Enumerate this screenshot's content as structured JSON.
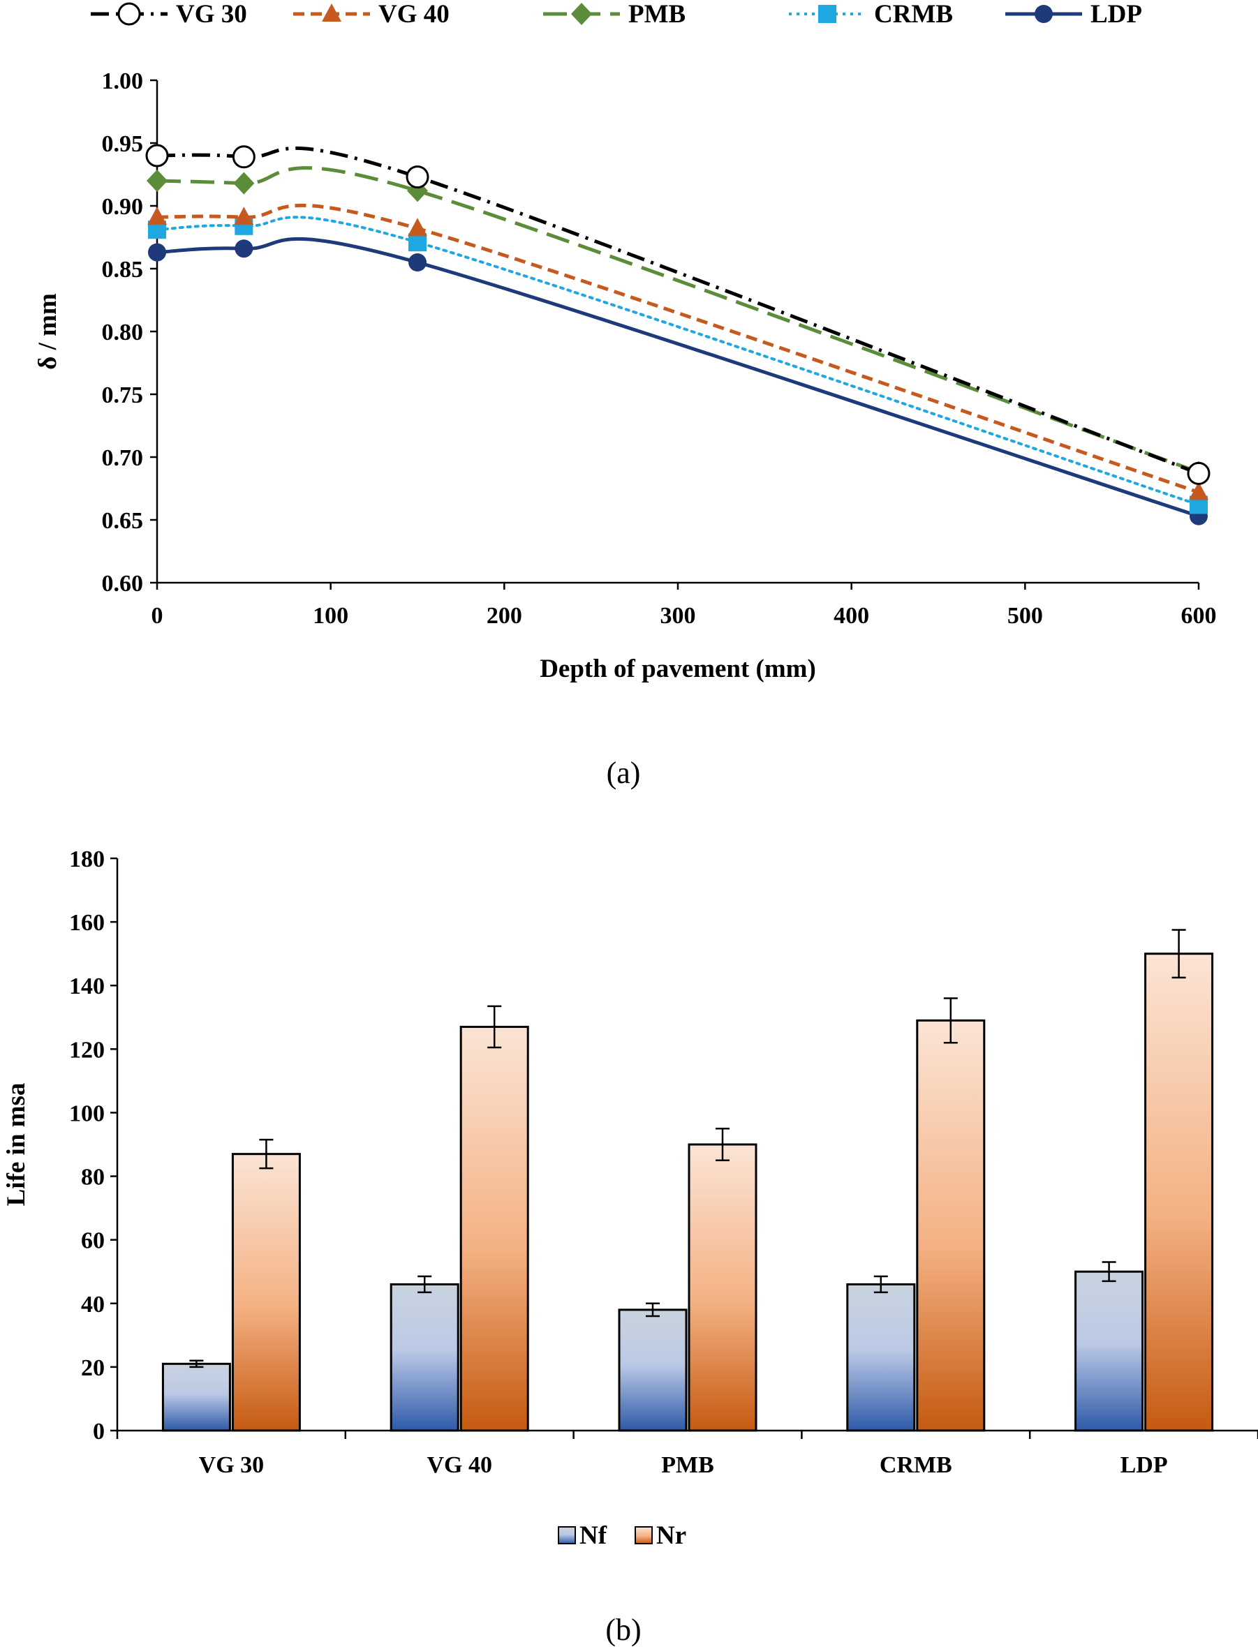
{
  "chart_data": [
    {
      "type": "line",
      "caption": "(a)",
      "xlabel": "Depth of pavement (mm)",
      "ylabel": "δ / mm",
      "xlim": [
        0,
        600
      ],
      "ylim": [
        0.6,
        1.0
      ],
      "xticks": [
        "0",
        "100",
        "200",
        "300",
        "400",
        "500",
        "600"
      ],
      "yticks": [
        "0.60",
        "0.65",
        "0.70",
        "0.75",
        "0.80",
        "0.85",
        "0.90",
        "0.95",
        "1.00"
      ],
      "legend_position": "top",
      "series": [
        {
          "name": "VG 30",
          "x": [
            0,
            50,
            150,
            600
          ],
          "y": [
            0.94,
            0.939,
            0.923,
            0.687
          ],
          "color": "#000000",
          "marker": "open-circle",
          "dash": "dash-dot"
        },
        {
          "name": "VG 40",
          "x": [
            0,
            50,
            150,
            600
          ],
          "y": [
            0.891,
            0.891,
            0.882,
            0.672
          ],
          "color": "#c65a1e",
          "marker": "triangle",
          "dash": "dash"
        },
        {
          "name": "PMB",
          "x": [
            0,
            50,
            150,
            600
          ],
          "y": [
            0.92,
            0.918,
            0.912,
            0.688
          ],
          "color": "#5b8c3a",
          "marker": "diamond",
          "dash": "long-dash"
        },
        {
          "name": "CRMB",
          "x": [
            0,
            50,
            150,
            600
          ],
          "y": [
            0.881,
            0.884,
            0.871,
            0.662
          ],
          "color": "#1ea7e1",
          "marker": "square",
          "dash": "dot"
        },
        {
          "name": "LDP",
          "x": [
            0,
            50,
            150,
            600
          ],
          "y": [
            0.863,
            0.866,
            0.855,
            0.653
          ],
          "color": "#1f3a7a",
          "marker": "filled-circle",
          "dash": "solid"
        }
      ]
    },
    {
      "type": "bar",
      "caption": "(b)",
      "xlabel": "",
      "ylabel": "Life in msa",
      "ylim": [
        0,
        180
      ],
      "yticks": [
        "0",
        "20",
        "40",
        "60",
        "80",
        "100",
        "120",
        "140",
        "160",
        "180"
      ],
      "categories": [
        "VG 30",
        "VG 40",
        "PMB",
        "CRMB",
        "LDP"
      ],
      "legend_position": "bottom",
      "series": [
        {
          "name": "Nf",
          "values": [
            21,
            46,
            38,
            46,
            50
          ],
          "errors": [
            1,
            2.5,
            2,
            2.5,
            3
          ],
          "color_top": "#c9d3de",
          "color_mid": "#bcc9e6",
          "color_bottom": "#2e5aa8"
        },
        {
          "name": "Nr",
          "values": [
            87,
            127,
            90,
            129,
            150
          ],
          "errors": [
            4.5,
            6.5,
            5,
            7,
            7.5
          ],
          "color_top": "#fbe4d5",
          "color_mid": "#f4b183",
          "color_bottom": "#c55a11"
        }
      ]
    }
  ]
}
